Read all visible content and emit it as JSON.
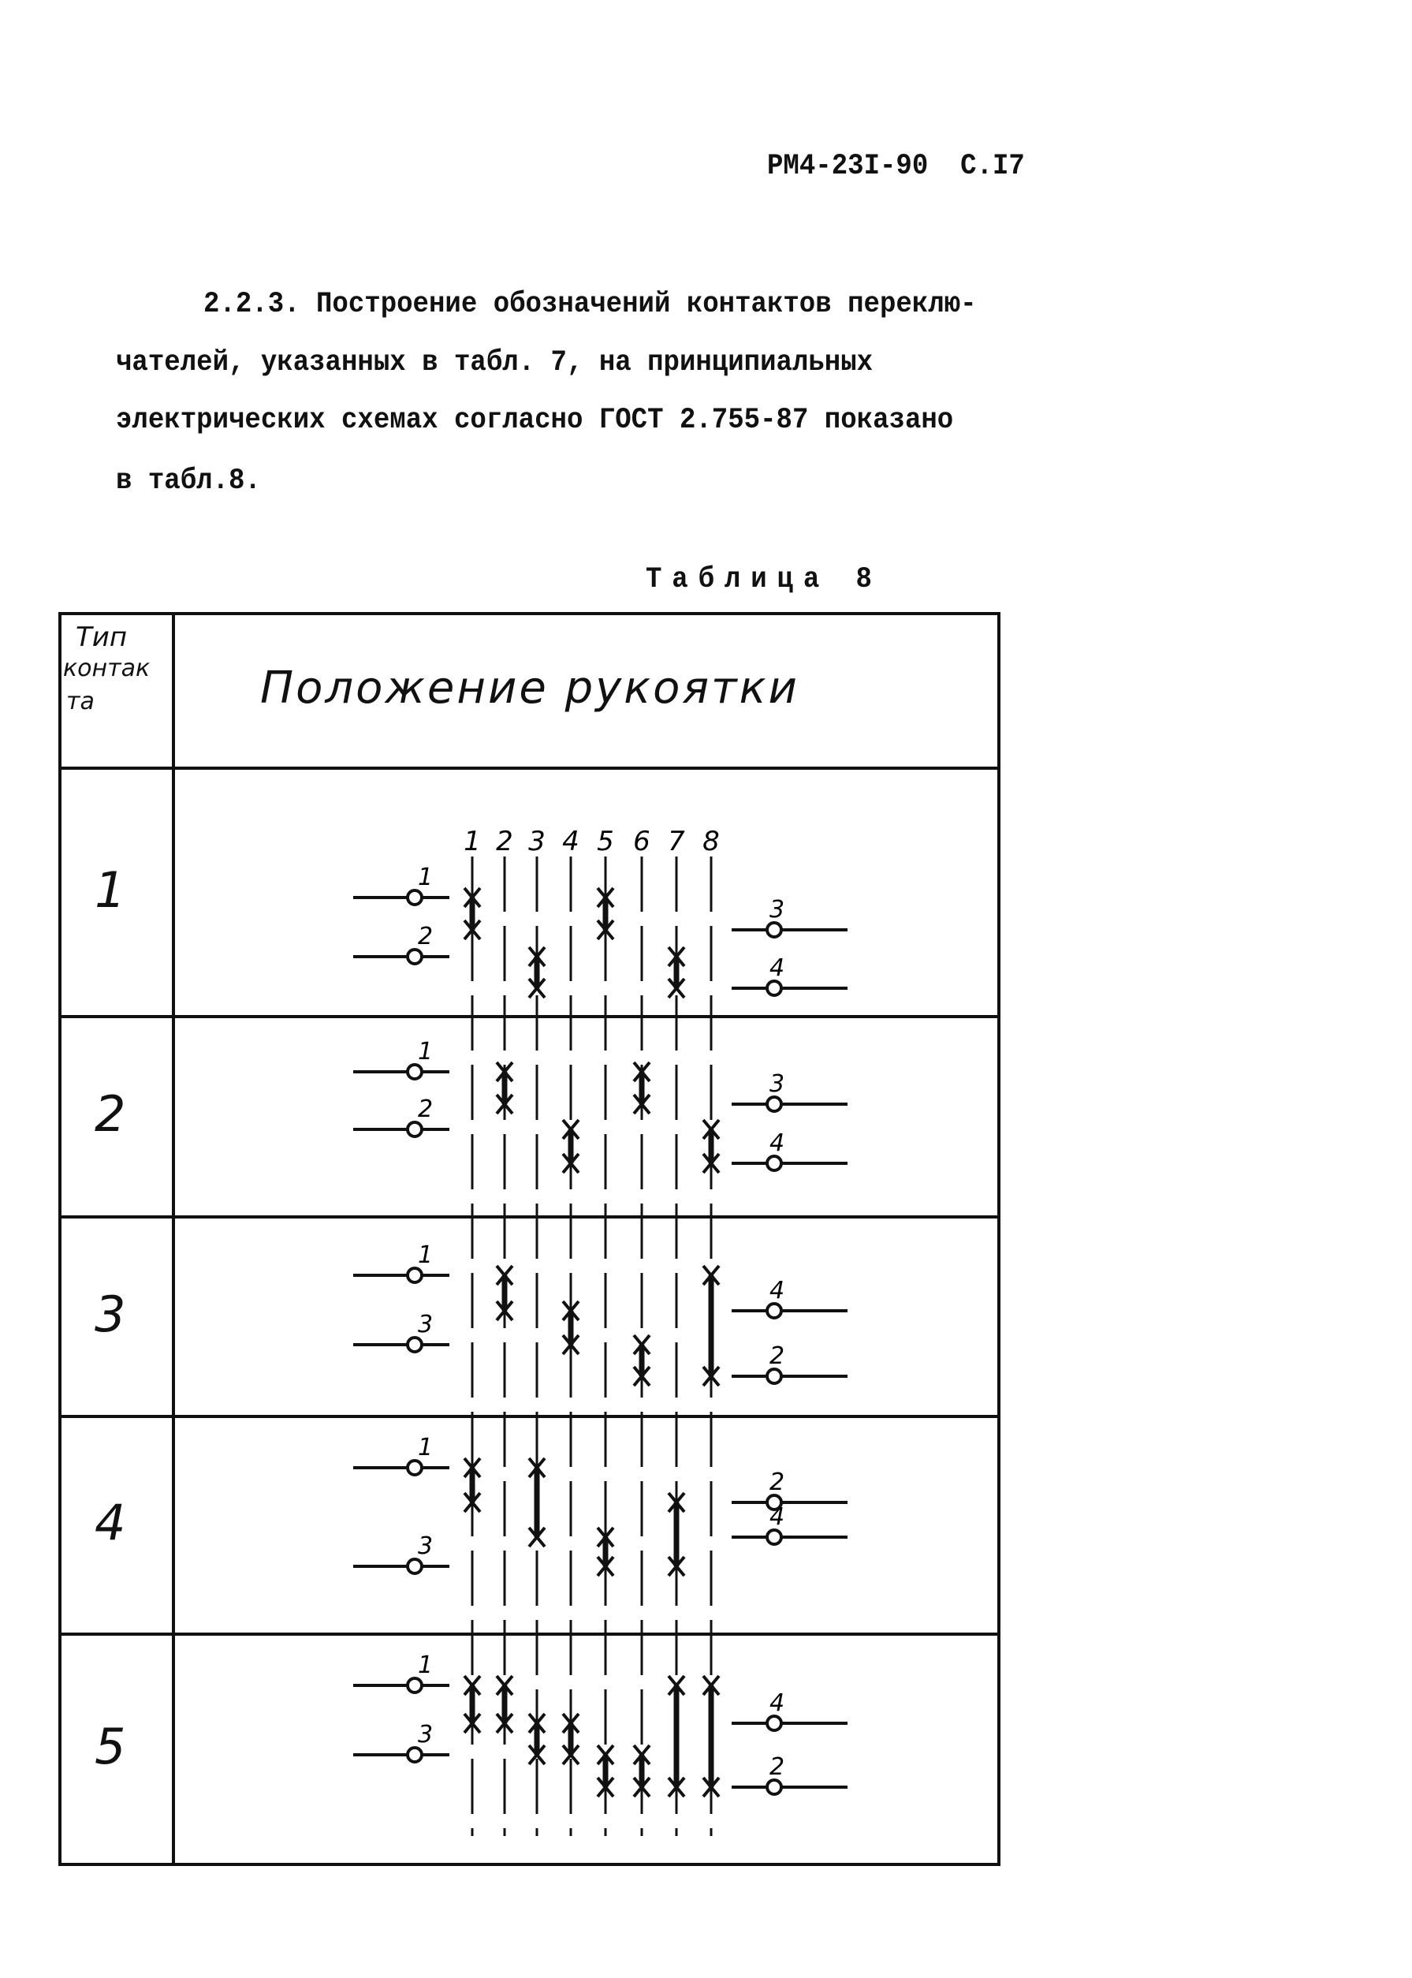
{
  "header": {
    "doc_code": "РМ4-23I-90",
    "page": "С.I7"
  },
  "paragraph": {
    "lines": [
      "2.2.3. Построение обозначений контактов переклю-",
      "чателей, указанных в табл. 7, на принципиальных",
      "электрических схемах согласно ГОСТ 2.755-87 показано",
      "в табл.8."
    ]
  },
  "table": {
    "caption": "Таблица 8",
    "col1_header": [
      "Тип",
      "контак",
      "та"
    ],
    "col2_header": "Положение рукоятки",
    "positions": [
      "1",
      "2",
      "3",
      "4",
      "5",
      "6",
      "7",
      "8"
    ],
    "rows": [
      {
        "type": "1",
        "left": [
          "1",
          "2"
        ],
        "right": [
          "3",
          "4"
        ],
        "closures": [
          {
            "position": 1,
            "between": [
              "1",
              "3"
            ]
          },
          {
            "position": 5,
            "between": [
              "1",
              "3"
            ]
          },
          {
            "position": 3,
            "between": [
              "2",
              "4"
            ]
          },
          {
            "position": 7,
            "between": [
              "2",
              "4"
            ]
          }
        ]
      },
      {
        "type": "2",
        "left": [
          "1",
          "2"
        ],
        "right": [
          "3",
          "4"
        ],
        "closures": [
          {
            "position": 2,
            "between": [
              "1",
              "3"
            ]
          },
          {
            "position": 6,
            "between": [
              "1",
              "3"
            ]
          },
          {
            "position": 4,
            "between": [
              "2",
              "4"
            ]
          },
          {
            "position": 8,
            "between": [
              "2",
              "4"
            ]
          }
        ]
      },
      {
        "type": "3",
        "left": [
          "1",
          "3"
        ],
        "right": [
          "4",
          "2"
        ],
        "closures": [
          {
            "position": 2,
            "between": [
              "1",
              "4"
            ]
          },
          {
            "position": 4,
            "between": [
              "4",
              "3"
            ]
          },
          {
            "position": 6,
            "between": [
              "3",
              "2"
            ]
          },
          {
            "position": 8,
            "between": [
              "1",
              "2"
            ]
          }
        ]
      },
      {
        "type": "4",
        "left": [
          "1",
          "3"
        ],
        "right": [
          "2",
          "4"
        ],
        "closures": [
          {
            "position": 1,
            "between": [
              "1",
              "2"
            ]
          },
          {
            "position": 3,
            "between": [
              "1",
              "4"
            ]
          },
          {
            "position": 5,
            "between": [
              "4",
              "3"
            ]
          },
          {
            "position": 7,
            "between": [
              "2",
              "3"
            ]
          }
        ]
      },
      {
        "type": "5",
        "left": [
          "1",
          "3"
        ],
        "right": [
          "4",
          "2"
        ],
        "closures": [
          {
            "position": 1,
            "between": [
              "1",
              "4"
            ]
          },
          {
            "position": 2,
            "between": [
              "1",
              "4"
            ]
          },
          {
            "position": 3,
            "between": [
              "4",
              "3"
            ]
          },
          {
            "position": 4,
            "between": [
              "4",
              "3"
            ]
          },
          {
            "position": 5,
            "between": [
              "3",
              "2"
            ]
          },
          {
            "position": 6,
            "between": [
              "3",
              "2"
            ]
          },
          {
            "position": 7,
            "between": [
              "1",
              "2"
            ]
          },
          {
            "position": 8,
            "between": [
              "1",
              "2"
            ]
          }
        ]
      }
    ]
  }
}
